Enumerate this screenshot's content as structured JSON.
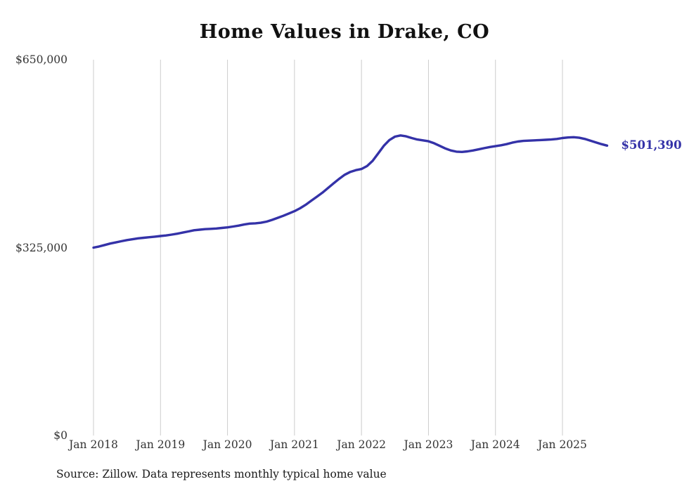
{
  "chart_data": {
    "type": "line",
    "title": "Home Values in Drake, CO",
    "source": "Source: Zillow. Data represents monthly typical home value",
    "end_label": "$501,390",
    "end_value": 501390,
    "grid": "vertical-only",
    "grid_color": "#cccccc",
    "background_color": "#ffffff",
    "ylim": [
      0,
      650000
    ],
    "ytick_values": [
      650000,
      325000,
      0
    ],
    "ytick_labels": [
      "$650,000",
      "$325,000",
      "$0"
    ],
    "xtick_labels": [
      "Jan 2018",
      "Jan 2019",
      "Jan 2020",
      "Jan 2021",
      "Jan 2022",
      "Jan 2023",
      "Jan 2024",
      "Jan 2025"
    ],
    "x_start": "2018-01",
    "x_freq": "monthly",
    "x_end": "2025-09",
    "series": [
      {
        "name": "Typical home value",
        "color": "#3432a8",
        "values": [
          325000,
          327000,
          329500,
          332000,
          334000,
          336000,
          338000,
          339500,
          341000,
          342000,
          343000,
          344000,
          345000,
          346000,
          347500,
          349000,
          351000,
          353000,
          355000,
          356000,
          357000,
          357500,
          358000,
          359000,
          360000,
          361500,
          363000,
          365000,
          366500,
          367000,
          368000,
          370000,
          373000,
          376500,
          380000,
          384000,
          388000,
          393000,
          399000,
          406000,
          413000,
          420000,
          428000,
          436000,
          444000,
          451000,
          456000,
          459000,
          461000,
          466000,
          475000,
          488000,
          501000,
          511000,
          517000,
          519000,
          517500,
          514500,
          512000,
          510500,
          509000,
          505500,
          501000,
          496500,
          493000,
          491000,
          490500,
          491500,
          493000,
          495000,
          497000,
          499000,
          500500,
          502000,
          504000,
          506500,
          508500,
          509500,
          510000,
          510500,
          511000,
          511500,
          512000,
          513000,
          514500,
          515500,
          516000,
          515000,
          513000,
          510000,
          507000,
          504000,
          501390
        ]
      }
    ]
  }
}
